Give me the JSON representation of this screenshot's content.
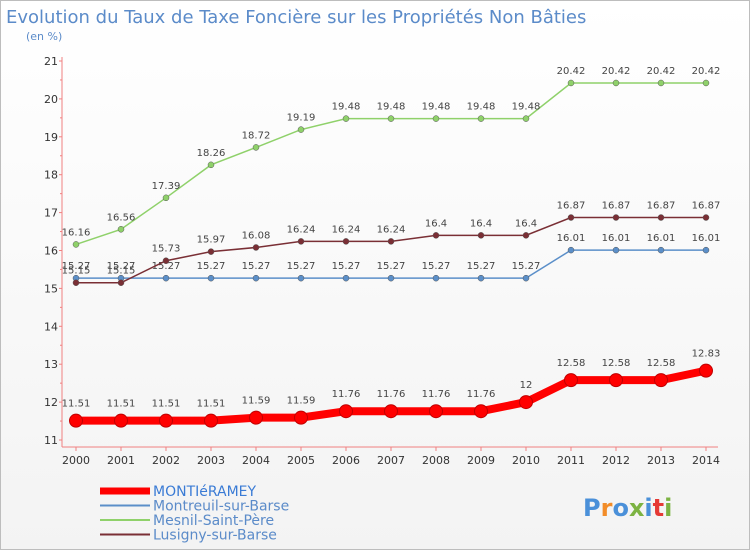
{
  "chart_data": {
    "type": "line",
    "title": "Evolution du Taux de Taxe Foncière sur les Propriétés Non Bâties",
    "unit_label": "(en %)",
    "x": [
      "2000",
      "2001",
      "2002",
      "2003",
      "2004",
      "2005",
      "2006",
      "2007",
      "2008",
      "2009",
      "2010",
      "2011",
      "2012",
      "2013",
      "2014"
    ],
    "ylim": [
      11,
      21
    ],
    "yticks": [
      11,
      12,
      13,
      14,
      15,
      16,
      17,
      18,
      19,
      20,
      21
    ],
    "grid": false,
    "legend_position": "bottom-left",
    "series": [
      {
        "name": "MONTIéRAMEY",
        "color": "#ff0000",
        "highlight": true,
        "values": [
          11.51,
          11.51,
          11.51,
          11.51,
          11.59,
          11.59,
          11.76,
          11.76,
          11.76,
          11.76,
          12,
          12.58,
          12.58,
          12.58,
          12.83
        ]
      },
      {
        "name": "Montreuil-sur-Barse",
        "color": "#5b8fc9",
        "values": [
          15.27,
          15.27,
          15.27,
          15.27,
          15.27,
          15.27,
          15.27,
          15.27,
          15.27,
          15.27,
          15.27,
          16.01,
          16.01,
          16.01,
          16.01
        ]
      },
      {
        "name": "Mesnil-Saint-Père",
        "color": "#8fd16a",
        "values": [
          16.16,
          16.56,
          17.39,
          18.26,
          18.72,
          19.19,
          19.48,
          19.48,
          19.48,
          19.48,
          19.48,
          20.42,
          20.42,
          20.42,
          20.42
        ]
      },
      {
        "name": "Lusigny-sur-Barse",
        "color": "#7a2f35",
        "values": [
          15.15,
          15.15,
          15.73,
          15.97,
          16.08,
          16.24,
          16.24,
          16.24,
          16.4,
          16.4,
          16.4,
          16.87,
          16.87,
          16.87,
          16.87
        ]
      }
    ]
  },
  "logo": {
    "text": "Proxiti",
    "letter_colors": [
      "#4a90d9",
      "#f28c28",
      "#4a90d9",
      "#7cb342",
      "#4a90d9",
      "#e53935",
      "#7cb342"
    ]
  }
}
